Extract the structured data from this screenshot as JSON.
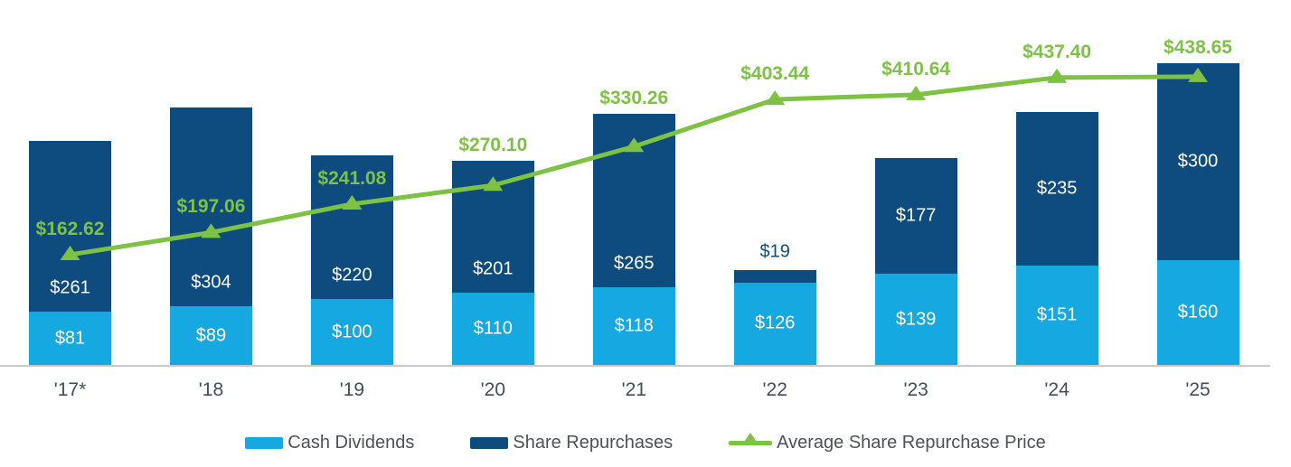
{
  "chart_data": {
    "type": "bar",
    "subtype": "stacked-bars-with-line-overlay",
    "title": "",
    "xlabel": "",
    "ylabel": "",
    "grid": false,
    "y_axis_visible": false,
    "legend_position": "bottom",
    "categories": [
      "'17*",
      "'18",
      "'19",
      "'20",
      "'21",
      "'22",
      "'23",
      "'24",
      "'25"
    ],
    "series": [
      {
        "name": "Cash Dividends",
        "kind": "bar",
        "color": "#16A9E1",
        "value_format": "$0",
        "values": [
          81,
          89,
          100,
          110,
          118,
          126,
          139,
          151,
          160
        ]
      },
      {
        "name": "Share Repurchases",
        "kind": "bar",
        "color": "#0E4C80",
        "value_format": "$0",
        "values": [
          261,
          304,
          220,
          201,
          265,
          19,
          177,
          235,
          300
        ]
      },
      {
        "name": "Average Share Repurchase Price",
        "kind": "line",
        "color": "#7DC242",
        "value_format": "$0.00",
        "values": [
          162.62,
          197.06,
          241.08,
          270.1,
          330.26,
          403.44,
          410.64,
          437.4,
          438.65
        ]
      }
    ],
    "layout_hints": {
      "share_repurchases_label_positions": [
        "low",
        "low",
        "low",
        "low",
        "low",
        "above",
        "center",
        "center",
        "center"
      ]
    }
  },
  "colors": {
    "cash_dividends": "#16A9E1",
    "share_repurchases": "#0E4C80",
    "price_line": "#7DC242",
    "axis_line": "#C9C9C9",
    "tick_label": "#414E5C",
    "legend_text": "#4D5257",
    "bar_label_text": "#FFFFFF",
    "background": "#FFFFFF"
  }
}
